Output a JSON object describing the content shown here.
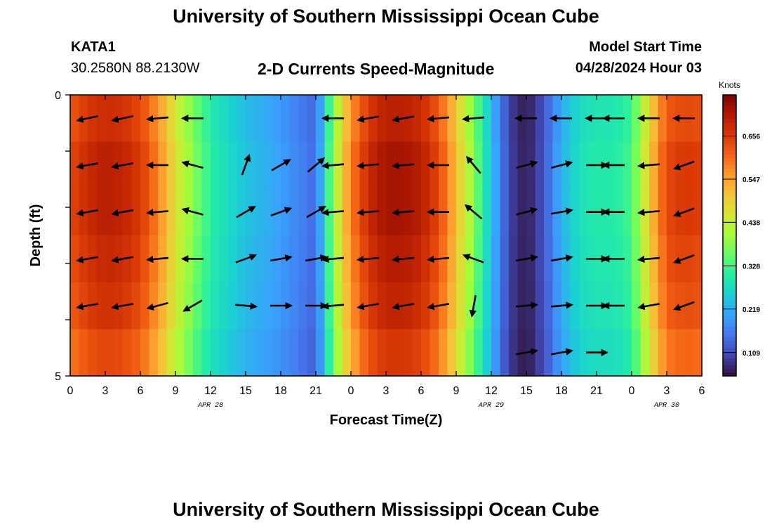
{
  "header": {
    "title": "University of Southern Mississippi Ocean Cube",
    "station_id": "KATA1",
    "coordinates": "30.2580N  88.2130W",
    "subtitle": "2-D Currents Speed-Magnitude",
    "model_start_label": "Model Start Time",
    "model_start_value": "04/28/2024 Hour 03"
  },
  "footer": {
    "title": "University of Southern Mississippi Ocean Cube"
  },
  "chart_data": {
    "type": "heatmap",
    "title": "2-D Currents Speed-Magnitude",
    "xlabel": "Forecast Time(Z)",
    "ylabel": "Depth (ft)",
    "x_tick_labels": [
      "0",
      "3",
      "6",
      "9",
      "12",
      "15",
      "18",
      "21",
      "0",
      "3",
      "6",
      "9",
      "12",
      "15",
      "18",
      "21",
      "0",
      "3",
      "6"
    ],
    "date_labels": [
      {
        "label": "APR 28",
        "at_tick": 4
      },
      {
        "label": "APR 29",
        "at_tick": 12
      },
      {
        "label": "APR 30",
        "at_tick": 17
      }
    ],
    "y_range": [
      0,
      5
    ],
    "y_tick_labels": [
      "0",
      "5"
    ],
    "colorbar": {
      "label": "Knots",
      "range": [
        0.05,
        0.76
      ],
      "tick_values": [
        0.109,
        0.219,
        0.328,
        0.438,
        0.547,
        0.656
      ],
      "tick_labels": [
        "0.109",
        "0.219",
        "0.328",
        "0.438",
        "0.547",
        "0.656"
      ],
      "stops": [
        "#30123b",
        "#4145ab",
        "#4675ed",
        "#39a2fc",
        "#1bcfd4",
        "#24eca6",
        "#61fc6c",
        "#a4fc3b",
        "#d1e834",
        "#f3c63a",
        "#fe9b2d",
        "#f36315",
        "#d93806",
        "#b11901",
        "#7a0403"
      ]
    },
    "time_hours": [
      0,
      1.5,
      3,
      4.5,
      6,
      7.5,
      9,
      10.5,
      12,
      13.5,
      15,
      16.5,
      18,
      19.5,
      21,
      22.5,
      24,
      25.5,
      27,
      28.5,
      30,
      31.5,
      33,
      34.5,
      36,
      37.5,
      39,
      40.5,
      42,
      43.5,
      45,
      46.5,
      48,
      49.5,
      51,
      52.5,
      54
    ],
    "speed_profile_knots": [
      0.64,
      0.68,
      0.7,
      0.69,
      0.66,
      0.58,
      0.47,
      0.38,
      0.31,
      0.27,
      0.24,
      0.22,
      0.2,
      0.17,
      0.14,
      0.4,
      0.58,
      0.68,
      0.72,
      0.72,
      0.7,
      0.64,
      0.52,
      0.38,
      0.24,
      0.1,
      0.06,
      0.12,
      0.22,
      0.28,
      0.3,
      0.3,
      0.33,
      0.5,
      0.64,
      0.66,
      0.65
    ],
    "depth_multipliers": [
      0.97,
      1.0,
      1.0,
      0.98,
      0.96,
      0.92
    ],
    "vectors": {
      "times_hours": [
        1.5,
        4.5,
        7.5,
        10.5,
        15,
        18,
        21,
        22.5,
        25.5,
        28.5,
        31.5,
        34.5,
        39,
        42,
        45,
        46.5,
        49.5,
        52.5
      ],
      "depth_rows": [
        0,
        1,
        2,
        3,
        4,
        5
      ],
      "direction_deg": [
        [
          258,
          258,
          265,
          270,
          null,
          null,
          null,
          270,
          260,
          260,
          265,
          265,
          270,
          270,
          270,
          270,
          270,
          270
        ],
        [
          260,
          260,
          270,
          285,
          20,
          60,
          50,
          265,
          265,
          265,
          270,
          320,
          75,
          75,
          90,
          270,
          265,
          250
        ],
        [
          260,
          260,
          265,
          285,
          60,
          70,
          60,
          265,
          265,
          265,
          270,
          310,
          75,
          80,
          90,
          270,
          265,
          250
        ],
        [
          260,
          260,
          265,
          270,
          70,
          80,
          80,
          265,
          265,
          265,
          265,
          290,
          80,
          80,
          90,
          270,
          265,
          250
        ],
        [
          260,
          260,
          255,
          240,
          95,
          90,
          90,
          265,
          260,
          260,
          260,
          190,
          85,
          85,
          90,
          270,
          260,
          250
        ],
        [
          null,
          null,
          null,
          null,
          null,
          null,
          null,
          null,
          null,
          null,
          null,
          null,
          80,
          80,
          90,
          null,
          null,
          null
        ]
      ]
    }
  }
}
